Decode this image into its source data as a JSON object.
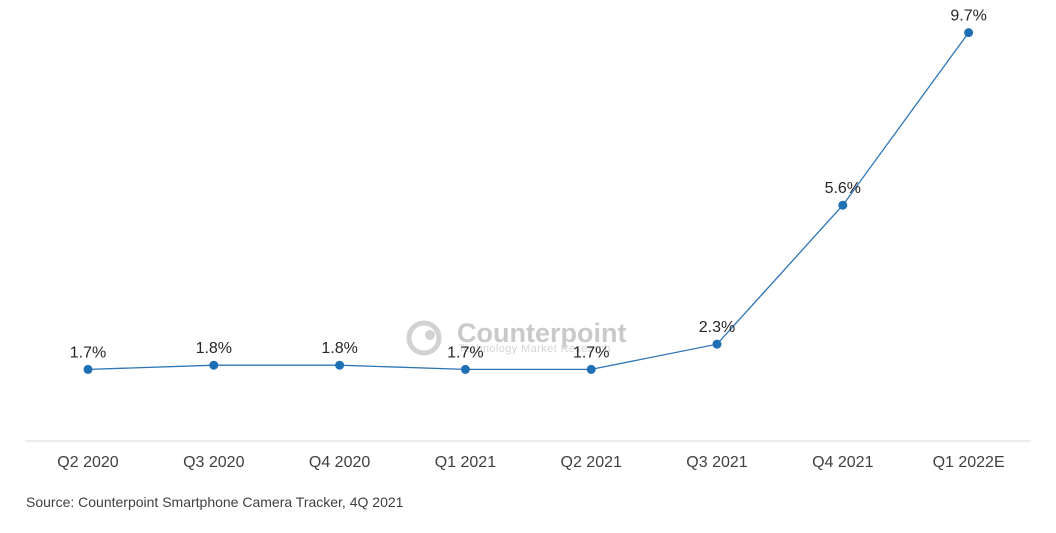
{
  "chart_data": {
    "type": "line",
    "categories": [
      "Q2 2020",
      "Q3 2020",
      "Q4 2020",
      "Q1 2021",
      "Q2 2021",
      "Q3 2021",
      "Q4 2021",
      "Q1 2022E"
    ],
    "values": [
      1.7,
      1.8,
      1.8,
      1.7,
      1.7,
      2.3,
      5.6,
      9.7
    ],
    "data_labels": [
      "1.7%",
      "1.8%",
      "1.8%",
      "1.7%",
      "1.7%",
      "2.3%",
      "5.6%",
      "9.7%"
    ],
    "title": "",
    "xlabel": "",
    "ylabel": "",
    "ylim": [
      0,
      10
    ],
    "grid": false,
    "legend": "none",
    "series_color": "#2e75b6",
    "marker_color": "#1f6fb5",
    "axis_color": "#d9d9d9"
  },
  "source": "Source: Counterpoint Smartphone Camera Tracker, 4Q 2021",
  "watermark": {
    "name": "Counterpoint",
    "tagline": "Technology Market Research",
    "icon": "counterpoint-logo-icon"
  }
}
